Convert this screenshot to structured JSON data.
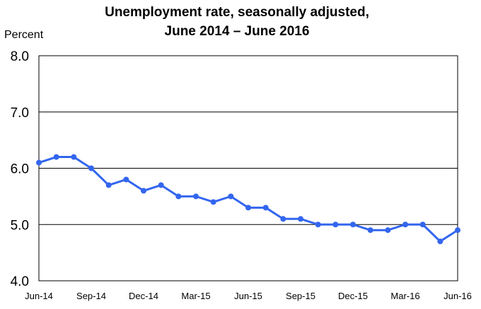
{
  "chart_data": {
    "type": "line",
    "title": [
      "Unemployment rate, seasonally adjusted,",
      "June 2014 – June 2016"
    ],
    "ylabel": "Percent",
    "xlabel": "",
    "ylim": [
      4.0,
      8.0
    ],
    "yticks": [
      "4.0",
      "5.0",
      "6.0",
      "7.0",
      "8.0"
    ],
    "grid": true,
    "line_color": "#3366ee",
    "x_tick_labels": [
      {
        "index": 0,
        "label": "Jun-14"
      },
      {
        "index": 3,
        "label": "Sep-14"
      },
      {
        "index": 6,
        "label": "Dec-14"
      },
      {
        "index": 9,
        "label": "Mar-15"
      },
      {
        "index": 12,
        "label": "Jun-15"
      },
      {
        "index": 15,
        "label": "Sep-15"
      },
      {
        "index": 18,
        "label": "Dec-15"
      },
      {
        "index": 21,
        "label": "Mar-16"
      },
      {
        "index": 24,
        "label": "Jun-16"
      }
    ],
    "series": [
      {
        "name": "Unemployment rate",
        "values": [
          6.1,
          6.2,
          6.2,
          6.0,
          5.7,
          5.8,
          5.6,
          5.7,
          5.5,
          5.5,
          5.4,
          5.5,
          5.3,
          5.3,
          5.1,
          5.1,
          5.0,
          5.0,
          5.0,
          4.9,
          4.9,
          5.0,
          5.0,
          4.7,
          4.9
        ]
      }
    ]
  }
}
